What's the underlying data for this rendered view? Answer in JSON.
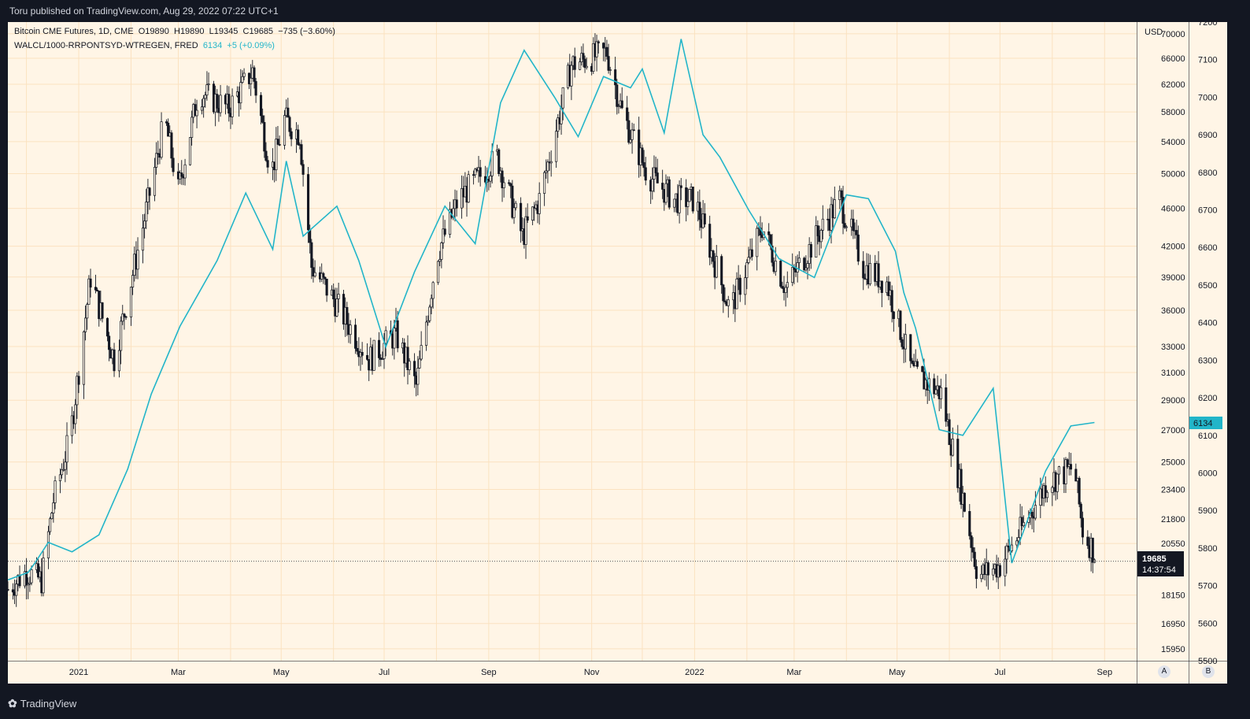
{
  "header": {
    "published": "Toru published on TradingView.com, Aug 29, 2022 07:22 UTC+1"
  },
  "legend": {
    "btc_name": "Bitcoin CME Futures, 1D, CME",
    "btc_open": "O19890",
    "btc_high": "H19890",
    "btc_low": "L19345",
    "btc_close": "C19685",
    "btc_change": "−735 (−3.60%)",
    "liq_name": "WALCL/1000-RRPONTSYD-WTREGEN, FRED",
    "liq_value": "6134",
    "liq_change": "+5 (+0.09%)"
  },
  "axes": {
    "currency": "USD",
    "left_ticks": [
      "70000",
      "66000",
      "62000",
      "58000",
      "54000",
      "50000",
      "46000",
      "42000",
      "39000",
      "36000",
      "33000",
      "31000",
      "29000",
      "27000",
      "25000",
      "23400",
      "21800",
      "20550",
      "18150",
      "16950",
      "15950"
    ],
    "right_ticks": [
      "7200",
      "7100",
      "7000",
      "6900",
      "6800",
      "6700",
      "6600",
      "6500",
      "6400",
      "6300",
      "6200",
      "6100",
      "6000",
      "5900",
      "5800",
      "5700",
      "5600",
      "5500"
    ],
    "x_ticks": [
      "2021",
      "Mar",
      "May",
      "Jul",
      "Sep",
      "Nov",
      "2022",
      "Mar",
      "May",
      "Jul",
      "Sep"
    ]
  },
  "price_label": {
    "value": "19685",
    "countdown": "14:37:54",
    "liq_value": "6134"
  },
  "scale_buttons": {
    "a": "A",
    "b": "B"
  },
  "footer": {
    "brand": "TradingView"
  },
  "colors": {
    "background": "#fff5e6",
    "grid": "#fbe2c0",
    "candle": "#131722",
    "liquidity": "#22b5c9",
    "chrome": "#131722"
  },
  "chart_data": {
    "type": "line",
    "title": "Bitcoin CME Futures, 1D, CME",
    "ylabel": "USD",
    "y_scale": "log",
    "ylim": [
      15500,
      72000
    ],
    "y2lim": [
      5500,
      7200
    ],
    "x_range": [
      "2020-11-20",
      "2022-09-20"
    ],
    "series": [
      {
        "name": "Bitcoin CME Futures, 1D, CME",
        "axis": "left",
        "style": "candles (approx. close series)",
        "x": [
          "2020-11-20",
          "2020-12-01",
          "2020-12-10",
          "2020-12-17",
          "2020-12-27",
          "2021-01-08",
          "2021-01-22",
          "2021-02-08",
          "2021-02-21",
          "2021-03-01",
          "2021-03-13",
          "2021-03-31",
          "2021-04-14",
          "2021-04-25",
          "2021-05-03",
          "2021-05-12",
          "2021-05-19",
          "2021-06-01",
          "2021-06-22",
          "2021-07-08",
          "2021-07-20",
          "2021-08-01",
          "2021-08-14",
          "2021-09-06",
          "2021-09-21",
          "2021-10-01",
          "2021-10-20",
          "2021-11-10",
          "2021-11-19",
          "2021-12-04",
          "2021-12-20",
          "2022-01-01",
          "2022-01-22",
          "2022-02-10",
          "2022-02-24",
          "2022-03-28",
          "2022-04-11",
          "2022-04-25",
          "2022-05-10",
          "2022-05-27",
          "2022-06-10",
          "2022-06-18",
          "2022-07-01",
          "2022-07-12",
          "2022-07-29",
          "2022-08-14",
          "2022-08-19",
          "2022-08-26"
        ],
        "values": [
          18400,
          19200,
          18800,
          22800,
          26600,
          39000,
          32000,
          44000,
          57000,
          48000,
          61000,
          58500,
          64000,
          50000,
          57000,
          55000,
          40000,
          37000,
          32000,
          34000,
          30000,
          41000,
          47000,
          52000,
          43000,
          47000,
          65000,
          67000,
          58000,
          50000,
          47000,
          47000,
          36000,
          44000,
          38000,
          47000,
          40000,
          38500,
          31000,
          29500,
          22500,
          19000,
          19500,
          21000,
          23800,
          24700,
          21200,
          20100
        ]
      },
      {
        "name": "WALCL/1000-RRPONTSYD-WTREGEN, FRED",
        "axis": "right",
        "x": [
          "2020-11-20",
          "2020-12-02",
          "2020-12-06",
          "2020-12-14",
          "2020-12-28",
          "2021-01-13",
          "2021-01-30",
          "2021-02-13",
          "2021-03-02",
          "2021-03-24",
          "2021-04-10",
          "2021-04-26",
          "2021-05-04",
          "2021-05-14",
          "2021-06-03",
          "2021-06-16",
          "2021-07-02",
          "2021-07-19",
          "2021-08-06",
          "2021-08-24",
          "2021-09-08",
          "2021-09-22",
          "2021-10-10",
          "2021-10-24",
          "2021-11-08",
          "2021-11-24",
          "2021-12-01",
          "2021-12-14",
          "2021-12-24",
          "2022-01-06",
          "2022-01-16",
          "2022-02-02",
          "2022-02-20",
          "2022-03-13",
          "2022-04-01",
          "2022-04-14",
          "2022-04-30",
          "2022-05-05",
          "2022-05-12",
          "2022-05-26",
          "2022-06-09",
          "2022-06-27",
          "2022-07-08",
          "2022-07-28",
          "2022-08-12",
          "2022-08-26"
        ],
        "values": [
          5715,
          5735,
          5760,
          5815,
          5790,
          5835,
          6010,
          6210,
          6390,
          6565,
          6745,
          6595,
          6830,
          6630,
          6710,
          6565,
          6335,
          6535,
          6710,
          6610,
          6985,
          7125,
          7000,
          6895,
          7055,
          7025,
          7075,
          6905,
          7155,
          6900,
          6840,
          6700,
          6570,
          6520,
          6740,
          6730,
          6590,
          6480,
          6385,
          6115,
          6100,
          6225,
          5760,
          6005,
          6125,
          6134
        ]
      }
    ]
  }
}
